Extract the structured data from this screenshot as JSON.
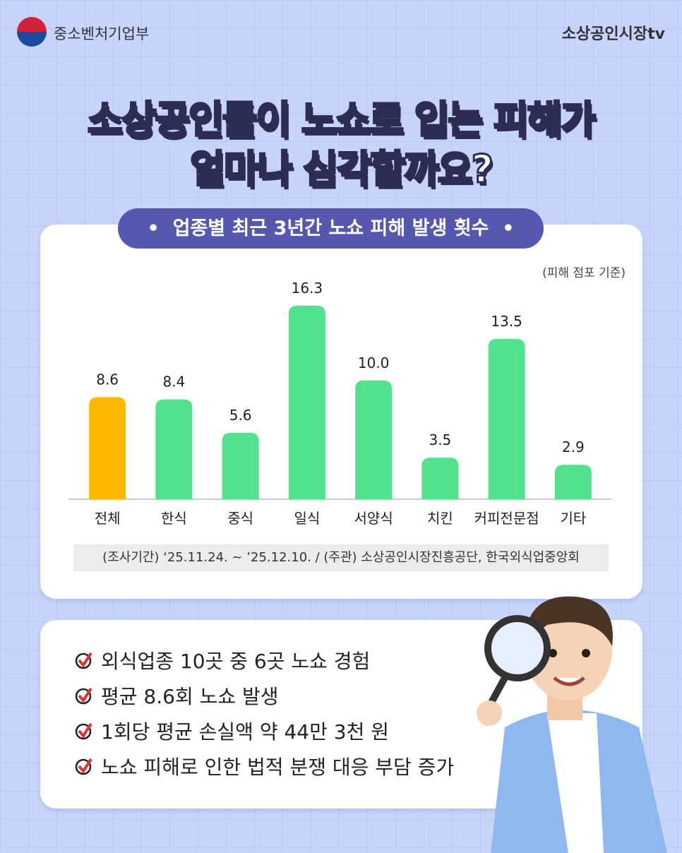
{
  "header": {
    "ministry": "중소벤처기업부",
    "brand": "소상공인시장tv"
  },
  "headline": [
    "소상공인들이 노쇼로 입는 피해가",
    "얼마나 심각할까요?"
  ],
  "chart_data": {
    "type": "bar",
    "title": "업종별 최근 3년간 노쇼 피해 발생 횟수",
    "subtitle": "(피해 점포 기준)",
    "categories": [
      "전체",
      "한식",
      "중식",
      "일식",
      "서양식",
      "치킨",
      "커피전문점",
      "기타"
    ],
    "values": [
      8.6,
      8.4,
      5.6,
      16.3,
      10.0,
      3.5,
      13.5,
      2.9
    ],
    "value_labels": [
      "8.6",
      "8.4",
      "5.6",
      "16.3",
      "10.0",
      "3.5",
      "13.5",
      "2.9"
    ],
    "colors": [
      "#ffb900",
      "#52e28d",
      "#52e28d",
      "#52e28d",
      "#52e28d",
      "#52e28d",
      "#52e28d",
      "#52e28d"
    ],
    "ylim": [
      0,
      17
    ],
    "source": "(조사기간) ‘25.11.24. ~ ’25.12.10. / (주관) 소상공인시장진흥공단, 한국외식업중앙회"
  },
  "bullets": [
    "외식업종 10곳 중 6곳 노쇼 경험",
    "평균 8.6회 노쇼 발생",
    "1회당 평균 손실액 약 44만 3천 원",
    "노쇼 피해로 인한 법적 분쟁 대응 부담 증가"
  ]
}
